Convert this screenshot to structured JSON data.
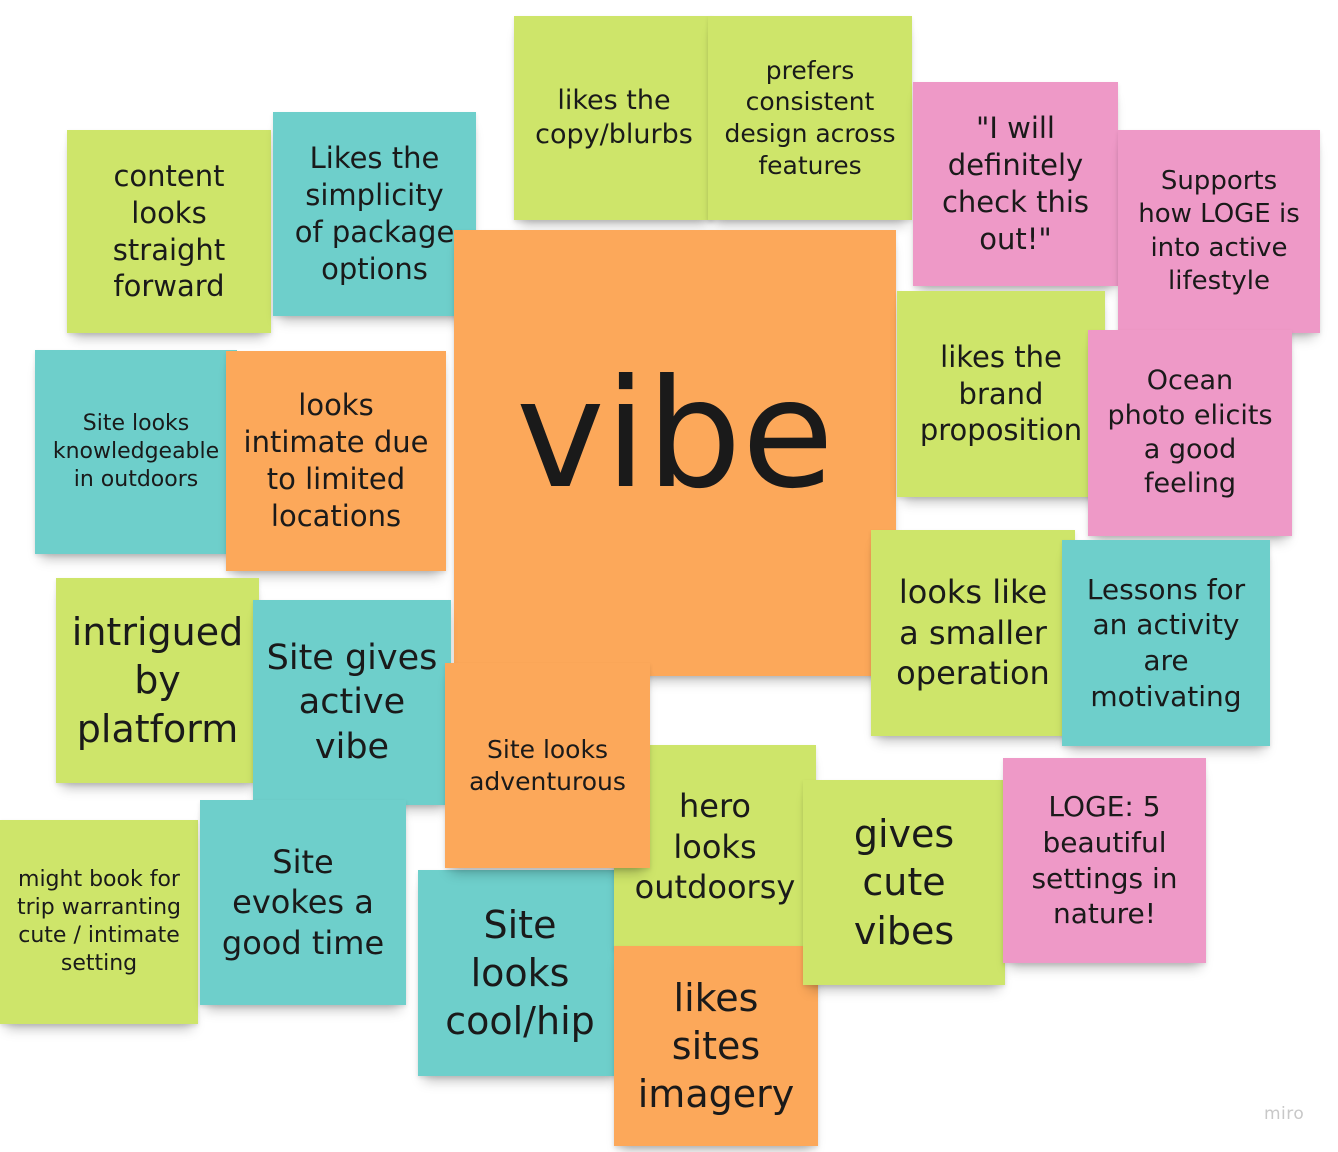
{
  "board": {
    "watermark": "miro",
    "center_label": "vibe",
    "notes": {
      "content_looks": "content\nlooks\nstraight\nforward",
      "likes_simplicity": "Likes the\nsimplicity\nof package\noptions",
      "likes_copy": "likes the\ncopy/blurbs",
      "prefers_consistent": "prefers\nconsistent\ndesign across\nfeatures",
      "will_check": "\"I will\ndefinitely\ncheck this\nout!\"",
      "supports_loge": "Supports\nhow LOGE is\ninto active\nlifestyle",
      "knowledgeable": "Site looks\nknowledgeable\nin outdoors",
      "intimate": "looks\nintimate due\nto limited\nlocations",
      "brand_proposition": "likes the\nbrand\nproposition",
      "ocean_photo": "Ocean\nphoto elicits\na good\nfeeling",
      "intrigued": "intrigued\nby\nplatform",
      "active_vibe": "Site gives\nactive\nvibe",
      "smaller_operation": "looks like\na smaller\noperation",
      "lessons": "Lessons for\nan activity\nare\nmotivating",
      "adventurous": "Site looks\nadventurous",
      "hero_outdoorsy": "hero\nlooks\noutdoorsy",
      "cute_vibes": "gives\ncute\nvibes",
      "loge_settings": "LOGE: 5\nbeautiful\nsettings in\nnature!",
      "might_book": "might book for\ntrip warranting\ncute / intimate\nsetting",
      "good_time": "Site\nevokes a\ngood time",
      "cool_hip": "Site\nlooks\ncool/hip",
      "likes_imagery": "likes\nsites\nimagery"
    }
  }
}
